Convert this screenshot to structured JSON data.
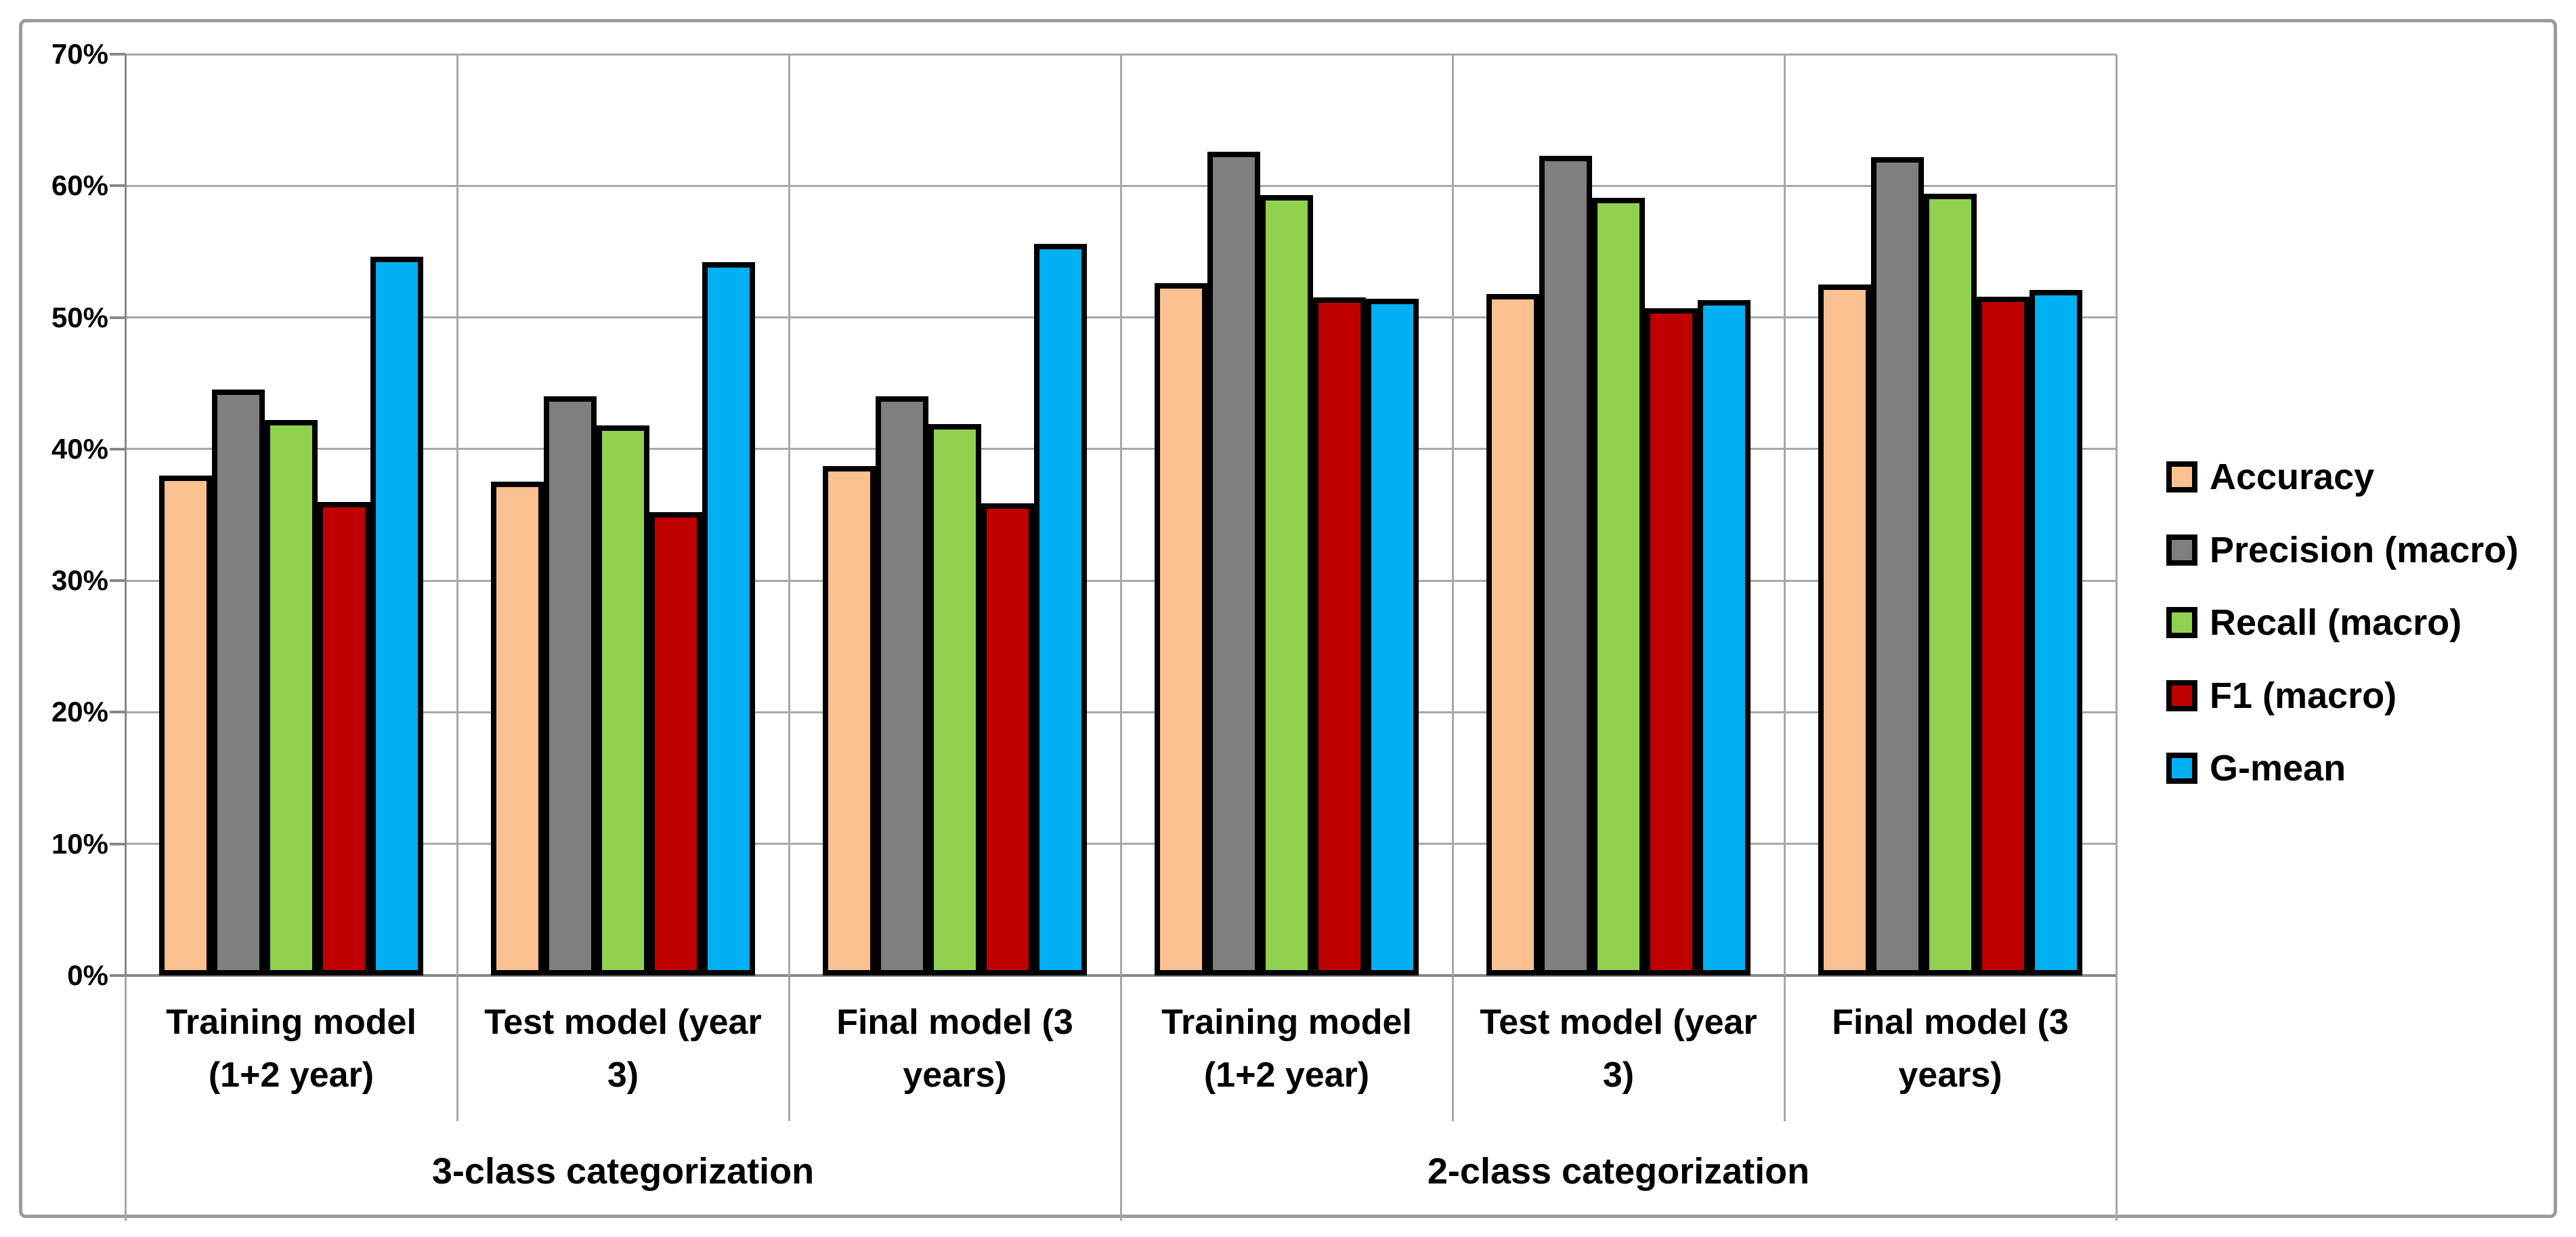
{
  "chart_data": {
    "type": "bar",
    "title": "",
    "xlabel": "",
    "ylabel": "",
    "ylim": [
      0,
      70
    ],
    "ytick_step": 10,
    "ytick_labels": [
      "0%",
      "10%",
      "20%",
      "30%",
      "40%",
      "50%",
      "60%",
      "70%"
    ],
    "grid": true,
    "legend_position": "right",
    "groups": [
      {
        "label": "3-class categorization",
        "categories": [
          "Training model\n(1+2 year)",
          "Test model (year\n3)",
          "Final model (3\nyears)"
        ]
      },
      {
        "label": "2-class categorization",
        "categories": [
          "Training model\n(1+2 year)",
          "Test model (year\n3)",
          "Final model (3\nyears)"
        ]
      }
    ],
    "series": [
      {
        "name": "Accuracy",
        "color": "#FAC090",
        "values": [
          38.0,
          37.5,
          38.7,
          52.6,
          51.8,
          52.5
        ]
      },
      {
        "name": "Precision (macro)",
        "color": "#7F7F7F",
        "values": [
          44.5,
          44.0,
          44.0,
          62.6,
          62.3,
          62.2
        ]
      },
      {
        "name": "Recall (macro)",
        "color": "#92D050",
        "values": [
          42.2,
          41.8,
          41.9,
          59.3,
          59.1,
          59.4
        ]
      },
      {
        "name": "F1 (macro)",
        "color": "#C00000",
        "values": [
          36.0,
          35.2,
          35.9,
          51.5,
          50.7,
          51.6
        ]
      },
      {
        "name": "G-mean",
        "color": "#00B0F0",
        "values": [
          54.6,
          54.2,
          55.6,
          51.4,
          51.3,
          52.1
        ]
      }
    ],
    "style_colors": {
      "bar_outline": "#000000",
      "gridline": "#a8a8a8",
      "axis_line": "#878787",
      "outer_border": "#9b9b9b",
      "background": "#ffffff",
      "text": "#000000"
    }
  }
}
